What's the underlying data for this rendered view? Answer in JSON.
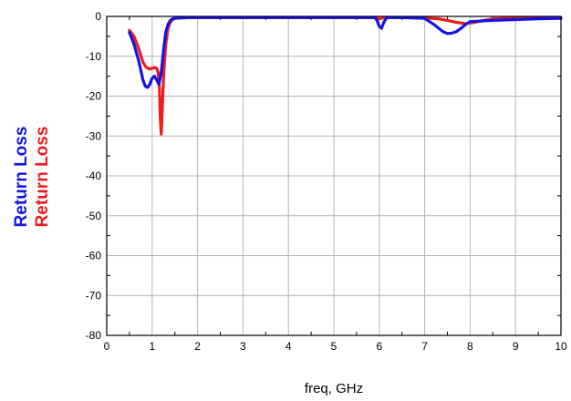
{
  "chart_data": {
    "type": "line",
    "xlabel": "freq, GHz",
    "ylabels": [
      {
        "text": "Return Loss",
        "color": "#1414e6"
      },
      {
        "text": "Return Loss",
        "color": "#ee1c1c"
      }
    ],
    "xlim": [
      0,
      10
    ],
    "ylim": [
      -80,
      0
    ],
    "x_ticks": [
      0,
      1,
      2,
      3,
      4,
      5,
      6,
      7,
      8,
      9,
      10
    ],
    "y_ticks": [
      0,
      -10,
      -20,
      -30,
      -40,
      -50,
      -60,
      -70,
      -80
    ],
    "grid": true,
    "series": [
      {
        "color": "#ee1c1c",
        "x": [
          0.5,
          0.6,
          0.7,
          0.8,
          0.85,
          0.9,
          0.95,
          1.0,
          1.05,
          1.1,
          1.13,
          1.16,
          1.18,
          1.2,
          1.22,
          1.25,
          1.3,
          1.35,
          1.4,
          1.45,
          1.5,
          1.6,
          1.8,
          2.0,
          3.0,
          4.0,
          5.0,
          5.9,
          6.0,
          6.05,
          6.1,
          6.2,
          6.5,
          7.0,
          7.3,
          7.5,
          7.7,
          7.9,
          8.1,
          8.3,
          8.5,
          9.0,
          9.5,
          10.0
        ],
        "y": [
          -3.5,
          -5,
          -8,
          -11.5,
          -12.5,
          -13,
          -13.2,
          -13,
          -12.8,
          -13,
          -14,
          -18,
          -26,
          -29.5,
          -24,
          -15,
          -7,
          -3,
          -1.5,
          -0.8,
          -0.5,
          -0.4,
          -0.3,
          -0.3,
          -0.3,
          -0.3,
          -0.3,
          -0.3,
          -0.6,
          -0.5,
          -0.3,
          -0.3,
          -0.3,
          -0.4,
          -0.6,
          -1,
          -1.5,
          -1.8,
          -1.5,
          -1,
          -0.6,
          -0.4,
          -0.3,
          -0.3
        ]
      },
      {
        "color": "#1414e6",
        "x": [
          0.5,
          0.6,
          0.7,
          0.8,
          0.85,
          0.9,
          0.95,
          1.0,
          1.05,
          1.1,
          1.15,
          1.2,
          1.25,
          1.3,
          1.35,
          1.4,
          1.45,
          1.5,
          1.6,
          1.8,
          2.0,
          3.0,
          4.0,
          5.0,
          5.9,
          5.95,
          6.0,
          6.05,
          6.1,
          6.15,
          6.2,
          6.5,
          7.0,
          7.2,
          7.4,
          7.5,
          7.6,
          7.7,
          7.8,
          7.9,
          8.0,
          8.5,
          9.0,
          9.5,
          10.0
        ],
        "y": [
          -4,
          -7,
          -11,
          -16,
          -17.5,
          -17.8,
          -17,
          -15.5,
          -15,
          -16,
          -17,
          -14,
          -8.5,
          -4,
          -2,
          -1,
          -0.6,
          -0.5,
          -0.4,
          -0.3,
          -0.3,
          -0.3,
          -0.3,
          -0.3,
          -0.3,
          -1,
          -2.5,
          -3,
          -1.5,
          -0.5,
          -0.3,
          -0.3,
          -0.5,
          -2,
          -3.8,
          -4.3,
          -4.2,
          -3.8,
          -3,
          -2,
          -1.3,
          -1,
          -0.8,
          -0.6,
          -0.5
        ]
      }
    ]
  }
}
